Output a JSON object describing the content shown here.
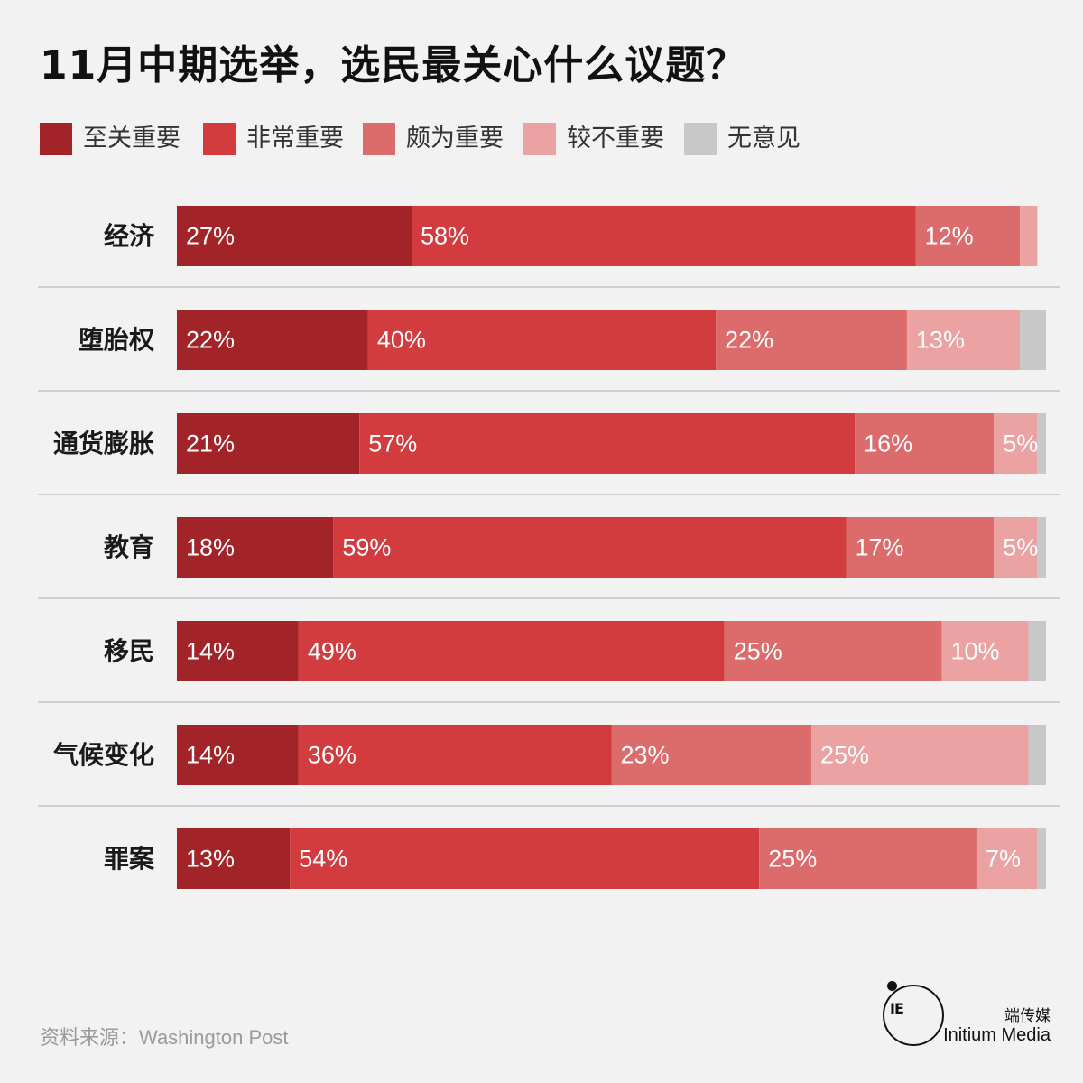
{
  "title": "11月中期选举，选民最关心什么议题？",
  "legend": [
    {
      "label": "至关重要",
      "color": "#a32428"
    },
    {
      "label": "非常重要",
      "color": "#d23c3f"
    },
    {
      "label": "颇为重要",
      "color": "#dc6b6c"
    },
    {
      "label": "较不重要",
      "color": "#eaa2a3"
    },
    {
      "label": "无意见",
      "color": "#c8c8c8"
    }
  ],
  "chart_data": {
    "type": "bar",
    "orientation": "horizontal",
    "stacked": true,
    "categories": [
      "经济",
      "堕胎权",
      "通货膨胀",
      "教育",
      "移民",
      "气候变化",
      "罪案"
    ],
    "series": [
      {
        "name": "至关重要",
        "color": "#a32428",
        "values": [
          27,
          22,
          21,
          18,
          14,
          14,
          13
        ]
      },
      {
        "name": "非常重要",
        "color": "#d23c3f",
        "values": [
          58,
          40,
          57,
          59,
          49,
          36,
          54
        ]
      },
      {
        "name": "颇为重要",
        "color": "#dc6b6c",
        "values": [
          12,
          22,
          16,
          17,
          25,
          23,
          25
        ]
      },
      {
        "name": "较不重要",
        "color": "#eaa2a3",
        "values": [
          2,
          13,
          5,
          5,
          10,
          25,
          7
        ]
      },
      {
        "name": "无意见",
        "color": "#c8c8c8",
        "values": [
          0,
          3,
          1,
          1,
          2,
          2,
          1
        ]
      }
    ],
    "value_labels": [
      [
        "27%",
        "58%",
        "12%",
        "",
        ""
      ],
      [
        "22%",
        "40%",
        "22%",
        "13%",
        ""
      ],
      [
        "21%",
        "57%",
        "16%",
        "5%",
        ""
      ],
      [
        "18%",
        "59%",
        "17%",
        "5%",
        ""
      ],
      [
        "14%",
        "49%",
        "25%",
        "10%",
        ""
      ],
      [
        "14%",
        "36%",
        "23%",
        "25%",
        ""
      ],
      [
        "13%",
        "54%",
        "25%",
        "7%",
        ""
      ]
    ],
    "xlim": [
      0,
      100
    ],
    "grid": false,
    "legend_position": "top"
  },
  "footer": {
    "source": "资料来源：Washington Post",
    "logo_glyph": "IE",
    "brand_cn": "端传媒",
    "brand_en": "Initium Media"
  }
}
